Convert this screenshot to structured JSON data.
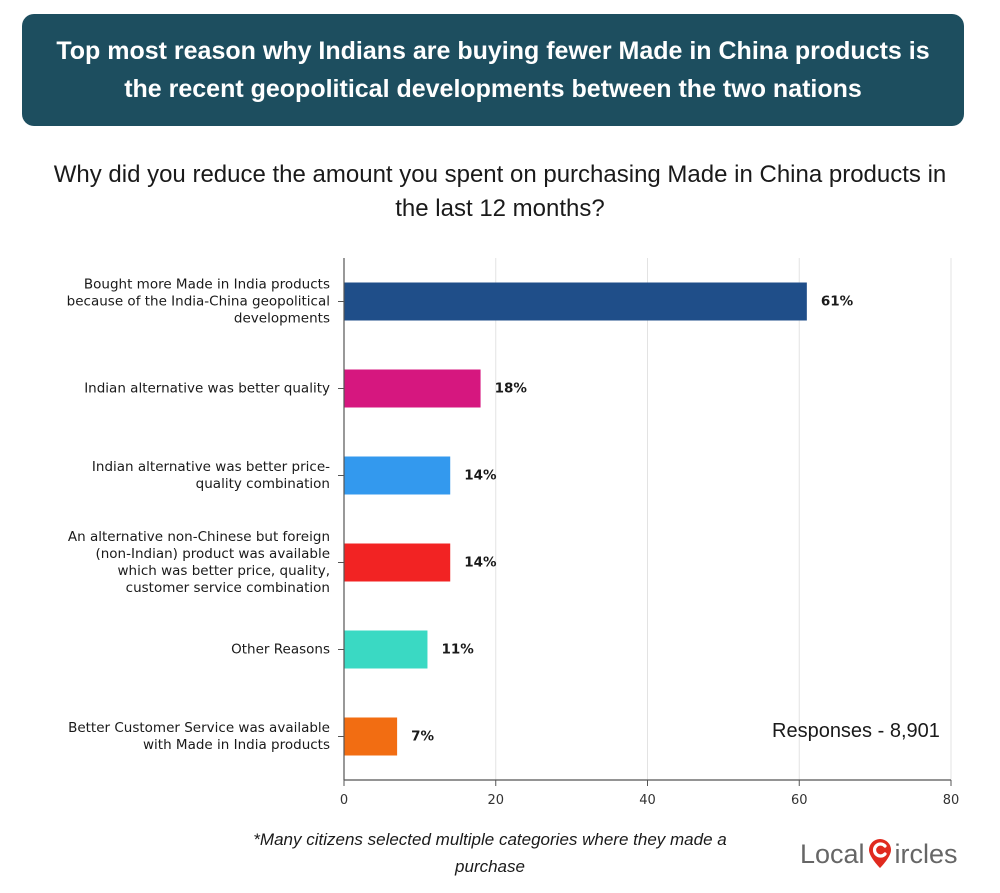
{
  "banner": {
    "title": "Top most reason why Indians are buying fewer Made in China products is the recent geopolitical developments between the two nations"
  },
  "subtitle": "Why did you reduce the amount you spent on purchasing Made in China products in the last 12 months?",
  "responses": "Responses - 8,901",
  "footnote": "*Many citizens selected multiple categories where they made a purchase",
  "logo": {
    "left": "Local",
    "right": "ircles",
    "icon": "location-pin-c-icon"
  },
  "colors": {
    "banner_bg": "#1d4e5f",
    "bars": [
      "#1f4e89",
      "#d6177f",
      "#3399ee",
      "#f22323",
      "#3ad9c3",
      "#f26d12"
    ]
  },
  "chart_data": {
    "type": "bar",
    "orientation": "horizontal",
    "categories": [
      [
        "Bought more Made in India products",
        "because of the India-China geopolitical",
        "developments"
      ],
      [
        "Indian alternative was better quality"
      ],
      [
        "Indian alternative was better price-",
        "quality combination"
      ],
      [
        "An alternative non-Chinese but foreign",
        "(non-Indian) product was available",
        "which was better price, quality,",
        "customer service combination"
      ],
      [
        "Other Reasons"
      ],
      [
        "Better Customer Service was available",
        "with Made in India products"
      ]
    ],
    "values": [
      61,
      18,
      14,
      14,
      11,
      7
    ],
    "value_labels": [
      "61%",
      "18%",
      "14%",
      "14%",
      "11%",
      "7%"
    ],
    "xlim": [
      0,
      80
    ],
    "xticks": [
      0,
      20,
      40,
      60,
      80
    ],
    "grid": true
  }
}
